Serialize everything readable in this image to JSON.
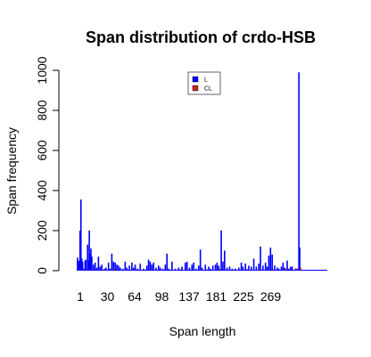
{
  "chart_data": {
    "type": "bar",
    "title": "Span distribution of crdo-HSB",
    "xlabel": "Span length",
    "ylabel": "Span frequency",
    "ylim": [
      0,
      1000
    ],
    "y_ticks": [
      0,
      200,
      400,
      600,
      800,
      1000
    ],
    "x_tick_labels": [
      "1",
      "30",
      "64",
      "98",
      "137",
      "181",
      "225",
      "269"
    ],
    "x_range": [
      1,
      300
    ],
    "grid": false,
    "legend_position": "top-center",
    "series": [
      {
        "name": "L",
        "color": "#0000ff",
        "points": [
          [
            1,
            65
          ],
          [
            2,
            50
          ],
          [
            3,
            45
          ],
          [
            4,
            200
          ],
          [
            5,
            355
          ],
          [
            6,
            60
          ],
          [
            7,
            45
          ],
          [
            8,
            10
          ],
          [
            10,
            50
          ],
          [
            11,
            55
          ],
          [
            13,
            130
          ],
          [
            14,
            50
          ],
          [
            15,
            200
          ],
          [
            16,
            85
          ],
          [
            17,
            110
          ],
          [
            18,
            70
          ],
          [
            20,
            30
          ],
          [
            22,
            40
          ],
          [
            24,
            15
          ],
          [
            26,
            70
          ],
          [
            28,
            20
          ],
          [
            30,
            30
          ],
          [
            33,
            10
          ],
          [
            35,
            15
          ],
          [
            38,
            40
          ],
          [
            40,
            10
          ],
          [
            42,
            85
          ],
          [
            44,
            45
          ],
          [
            46,
            40
          ],
          [
            48,
            30
          ],
          [
            50,
            25
          ],
          [
            52,
            15
          ],
          [
            55,
            10
          ],
          [
            58,
            45
          ],
          [
            60,
            15
          ],
          [
            63,
            25
          ],
          [
            66,
            40
          ],
          [
            68,
            15
          ],
          [
            70,
            30
          ],
          [
            73,
            10
          ],
          [
            76,
            35
          ],
          [
            80,
            10
          ],
          [
            84,
            25
          ],
          [
            86,
            55
          ],
          [
            88,
            45
          ],
          [
            90,
            30
          ],
          [
            92,
            40
          ],
          [
            95,
            15
          ],
          [
            98,
            25
          ],
          [
            100,
            15
          ],
          [
            103,
            10
          ],
          [
            106,
            30
          ],
          [
            108,
            85
          ],
          [
            110,
            10
          ],
          [
            114,
            45
          ],
          [
            118,
            10
          ],
          [
            122,
            15
          ],
          [
            126,
            20
          ],
          [
            130,
            40
          ],
          [
            132,
            45
          ],
          [
            135,
            15
          ],
          [
            138,
            30
          ],
          [
            140,
            40
          ],
          [
            143,
            10
          ],
          [
            146,
            25
          ],
          [
            148,
            105
          ],
          [
            150,
            15
          ],
          [
            154,
            30
          ],
          [
            158,
            20
          ],
          [
            160,
            10
          ],
          [
            163,
            25
          ],
          [
            166,
            30
          ],
          [
            168,
            40
          ],
          [
            170,
            25
          ],
          [
            173,
            200
          ],
          [
            175,
            45
          ],
          [
            177,
            100
          ],
          [
            180,
            15
          ],
          [
            183,
            20
          ],
          [
            186,
            10
          ],
          [
            190,
            10
          ],
          [
            194,
            15
          ],
          [
            197,
            40
          ],
          [
            199,
            20
          ],
          [
            202,
            35
          ],
          [
            206,
            25
          ],
          [
            209,
            20
          ],
          [
            212,
            60
          ],
          [
            215,
            20
          ],
          [
            218,
            35
          ],
          [
            220,
            120
          ],
          [
            223,
            25
          ],
          [
            226,
            40
          ],
          [
            228,
            20
          ],
          [
            230,
            75
          ],
          [
            232,
            115
          ],
          [
            234,
            80
          ],
          [
            237,
            25
          ],
          [
            240,
            15
          ],
          [
            242,
            10
          ],
          [
            245,
            20
          ],
          [
            247,
            40
          ],
          [
            249,
            15
          ],
          [
            252,
            50
          ],
          [
            254,
            10
          ],
          [
            256,
            20
          ],
          [
            258,
            20
          ],
          [
            261,
            5
          ],
          [
            264,
            10
          ],
          [
            266,
            990
          ],
          [
            267,
            115
          ]
        ]
      },
      {
        "name": "CL",
        "color": "#cc2222",
        "points": [
          [
            9,
            8
          ],
          [
            21,
            6
          ],
          [
            34,
            8
          ],
          [
            45,
            10
          ],
          [
            57,
            6
          ],
          [
            72,
            8
          ],
          [
            83,
            7
          ],
          [
            95,
            5
          ],
          [
            111,
            6
          ],
          [
            125,
            9
          ],
          [
            142,
            6
          ],
          [
            156,
            7
          ],
          [
            171,
            10
          ],
          [
            188,
            6
          ],
          [
            204,
            8
          ],
          [
            219,
            9
          ],
          [
            236,
            7
          ],
          [
            251,
            10
          ],
          [
            262,
            12
          ],
          [
            268,
            15
          ]
        ]
      }
    ]
  }
}
